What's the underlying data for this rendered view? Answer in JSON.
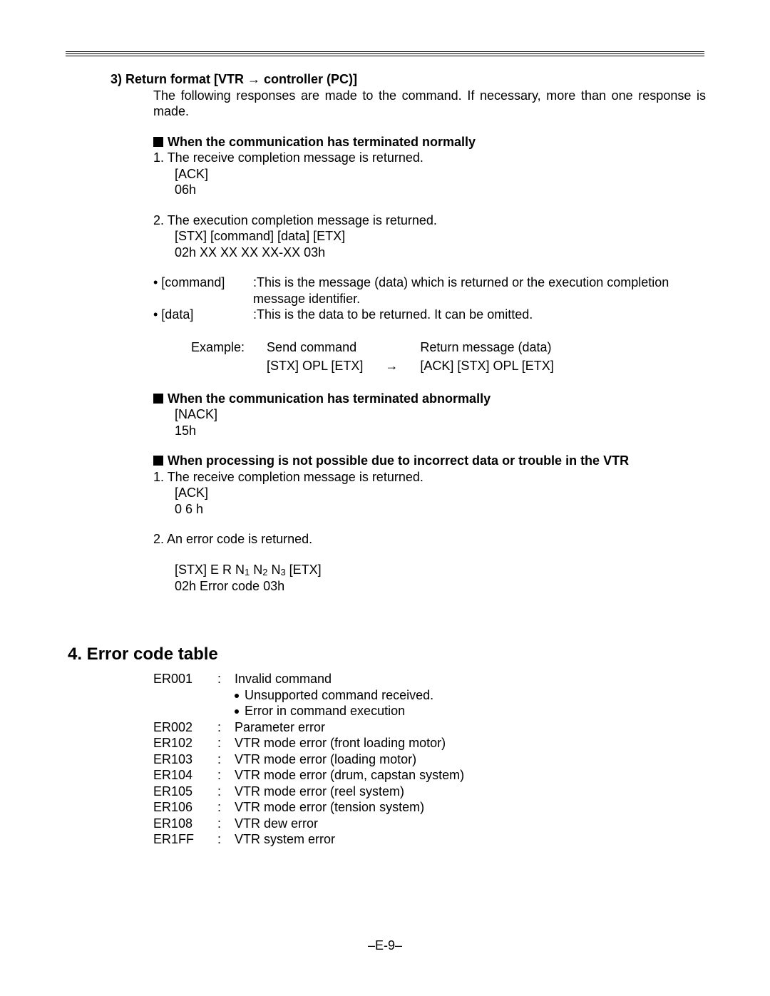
{
  "section3": {
    "heading": "3) Return format [VTR → controller (PC)]",
    "intro": "The following responses are made to the command. If necessary, more than one response is made.",
    "normal": {
      "title": "When the communication has terminated normally",
      "item1": "1. The receive completion message is returned.",
      "ack1": "[ACK]",
      "ack2": " 06h",
      "item2": "2. The execution completion message is returned.",
      "frame1": "[STX]  [command]  [data]  [ETX]",
      "frame2": " 02h  XX  XX  XX  XX-XX  03h",
      "cmd_label": "• [command]",
      "cmd_desc": ":This is the message (data) which is returned or the execution completion message identifier.",
      "data_label": "• [data]",
      "data_desc": ":This is the data to be returned. It can be omitted.",
      "example_label": "Example:",
      "example_send_h": "Send command",
      "example_ret_h": "Return message (data)",
      "example_send": "[STX] OPL [ETX]",
      "example_arrow": "→",
      "example_ret": "[ACK] [STX] OPL [ETX]"
    },
    "abnormal": {
      "title": "When the communication has terminated abnormally",
      "nack1": "[NACK]",
      "nack2": "  15h"
    },
    "error": {
      "title": "When processing is not possible due to incorrect data or trouble in the VTR",
      "item1": "1. The receive completion message is returned.",
      "ack1": "[ACK]",
      "ack2": " 0 6 h",
      "item2": "2. An error code is returned.",
      "frame1_pre": "[STX] E R N",
      "frame1_n1": "1",
      "frame1_mid1": " N",
      "frame1_n2": "2",
      "frame1_mid2": " N",
      "frame1_n3": "3",
      "frame1_post": " [ETX]",
      "frame2": " 02h  Error code     03h"
    }
  },
  "section4": {
    "heading": "4. Error code table",
    "codes": [
      {
        "code": "ER001",
        "desc": "Invalid command",
        "sub": [
          "Unsupported command received.",
          "Error in command execution"
        ]
      },
      {
        "code": "ER002",
        "desc": "Parameter error"
      },
      {
        "code": "ER102",
        "desc": "VTR mode error (front loading motor)"
      },
      {
        "code": "ER103",
        "desc": "VTR mode error (loading motor)"
      },
      {
        "code": "ER104",
        "desc": "VTR mode error (drum, capstan system)"
      },
      {
        "code": "ER105",
        "desc": "VTR mode error (reel system)"
      },
      {
        "code": "ER106",
        "desc": "VTR mode error (tension system)"
      },
      {
        "code": "ER108",
        "desc": "VTR dew error"
      },
      {
        "code": "ER1FF",
        "desc": "VTR system error"
      }
    ]
  },
  "page_number": "–E-9–"
}
